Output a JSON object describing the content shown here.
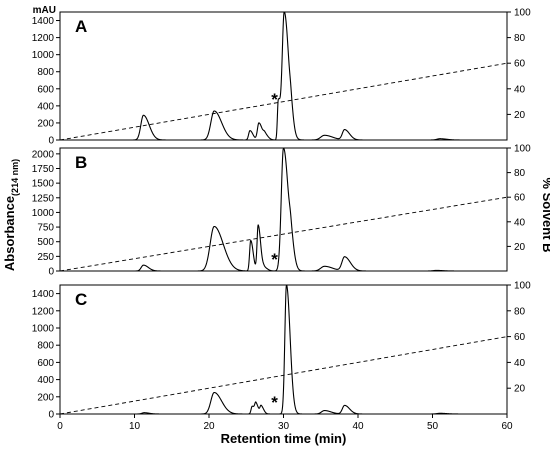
{
  "chart_data": {
    "type": "line",
    "y_unit_label": "mAU",
    "xlabel": "Retention time (min)",
    "ylabel_main": "Absorbance",
    "ylabel_sub": "(214 nm)",
    "ylabel_right": "% Solvent B",
    "xlim": [
      0,
      60
    ],
    "x_ticks": [
      0,
      10,
      20,
      30,
      40,
      50,
      60
    ],
    "right_ticks": [
      20,
      40,
      60,
      80,
      100
    ],
    "panels": [
      {
        "label": "A",
        "ylim": [
          0,
          1500
        ],
        "y_ticks": [
          0,
          200,
          400,
          600,
          800,
          1000,
          1200,
          1400
        ],
        "gradient": {
          "x": [
            0,
            60
          ],
          "y": [
            0,
            60
          ]
        },
        "asterisk_x": 28.8,
        "peaks": [
          {
            "rt": 11.2,
            "height": 290,
            "width": 0.35
          },
          {
            "rt": 20.7,
            "height": 340,
            "width": 0.45
          },
          {
            "rt": 25.5,
            "height": 110,
            "width": 0.18
          },
          {
            "rt": 26.7,
            "height": 200,
            "width": 0.2
          },
          {
            "rt": 27.5,
            "height": 60,
            "width": 0.2
          },
          {
            "rt": 29.3,
            "height": 450,
            "width": 0.12
          },
          {
            "rt": 30.1,
            "height": 1500,
            "width": 0.28
          },
          {
            "rt": 31.0,
            "height": 100,
            "width": 0.15
          },
          {
            "rt": 35.5,
            "height": 55,
            "width": 0.5
          },
          {
            "rt": 38.2,
            "height": 120,
            "width": 0.3
          },
          {
            "rt": 51.0,
            "height": 15,
            "width": 0.4
          }
        ]
      },
      {
        "label": "B",
        "ylim": [
          0,
          2100
        ],
        "y_ticks": [
          0,
          250,
          500,
          750,
          1000,
          1250,
          1500,
          1750,
          2000
        ],
        "gradient": {
          "x": [
            0,
            60
          ],
          "y": [
            0,
            60
          ]
        },
        "asterisk_x": 28.8,
        "peaks": [
          {
            "rt": 11.2,
            "height": 100,
            "width": 0.3
          },
          {
            "rt": 20.7,
            "height": 760,
            "width": 0.55
          },
          {
            "rt": 25.6,
            "height": 520,
            "width": 0.15
          },
          {
            "rt": 26.6,
            "height": 780,
            "width": 0.15
          },
          {
            "rt": 27.4,
            "height": 60,
            "width": 0.2
          },
          {
            "rt": 30.0,
            "height": 2100,
            "width": 0.3
          },
          {
            "rt": 31.0,
            "height": 250,
            "width": 0.2
          },
          {
            "rt": 35.5,
            "height": 80,
            "width": 0.5
          },
          {
            "rt": 38.2,
            "height": 240,
            "width": 0.35
          },
          {
            "rt": 50.5,
            "height": 10,
            "width": 0.4
          }
        ]
      },
      {
        "label": "C",
        "ylim": [
          0,
          1500
        ],
        "y_ticks": [
          0,
          200,
          400,
          600,
          800,
          1000,
          1200,
          1400
        ],
        "gradient": {
          "x": [
            0,
            60
          ],
          "y": [
            0,
            60
          ]
        },
        "asterisk_x": 28.8,
        "peaks": [
          {
            "rt": 11.3,
            "height": 15,
            "width": 0.3
          },
          {
            "rt": 20.7,
            "height": 250,
            "width": 0.45
          },
          {
            "rt": 25.8,
            "height": 90,
            "width": 0.15
          },
          {
            "rt": 26.3,
            "height": 110,
            "width": 0.15
          },
          {
            "rt": 27.0,
            "height": 90,
            "width": 0.15
          },
          {
            "rt": 30.4,
            "height": 1500,
            "width": 0.22
          },
          {
            "rt": 35.5,
            "height": 40,
            "width": 0.4
          },
          {
            "rt": 38.2,
            "height": 100,
            "width": 0.3
          },
          {
            "rt": 51.0,
            "height": 8,
            "width": 0.4
          }
        ]
      }
    ]
  }
}
